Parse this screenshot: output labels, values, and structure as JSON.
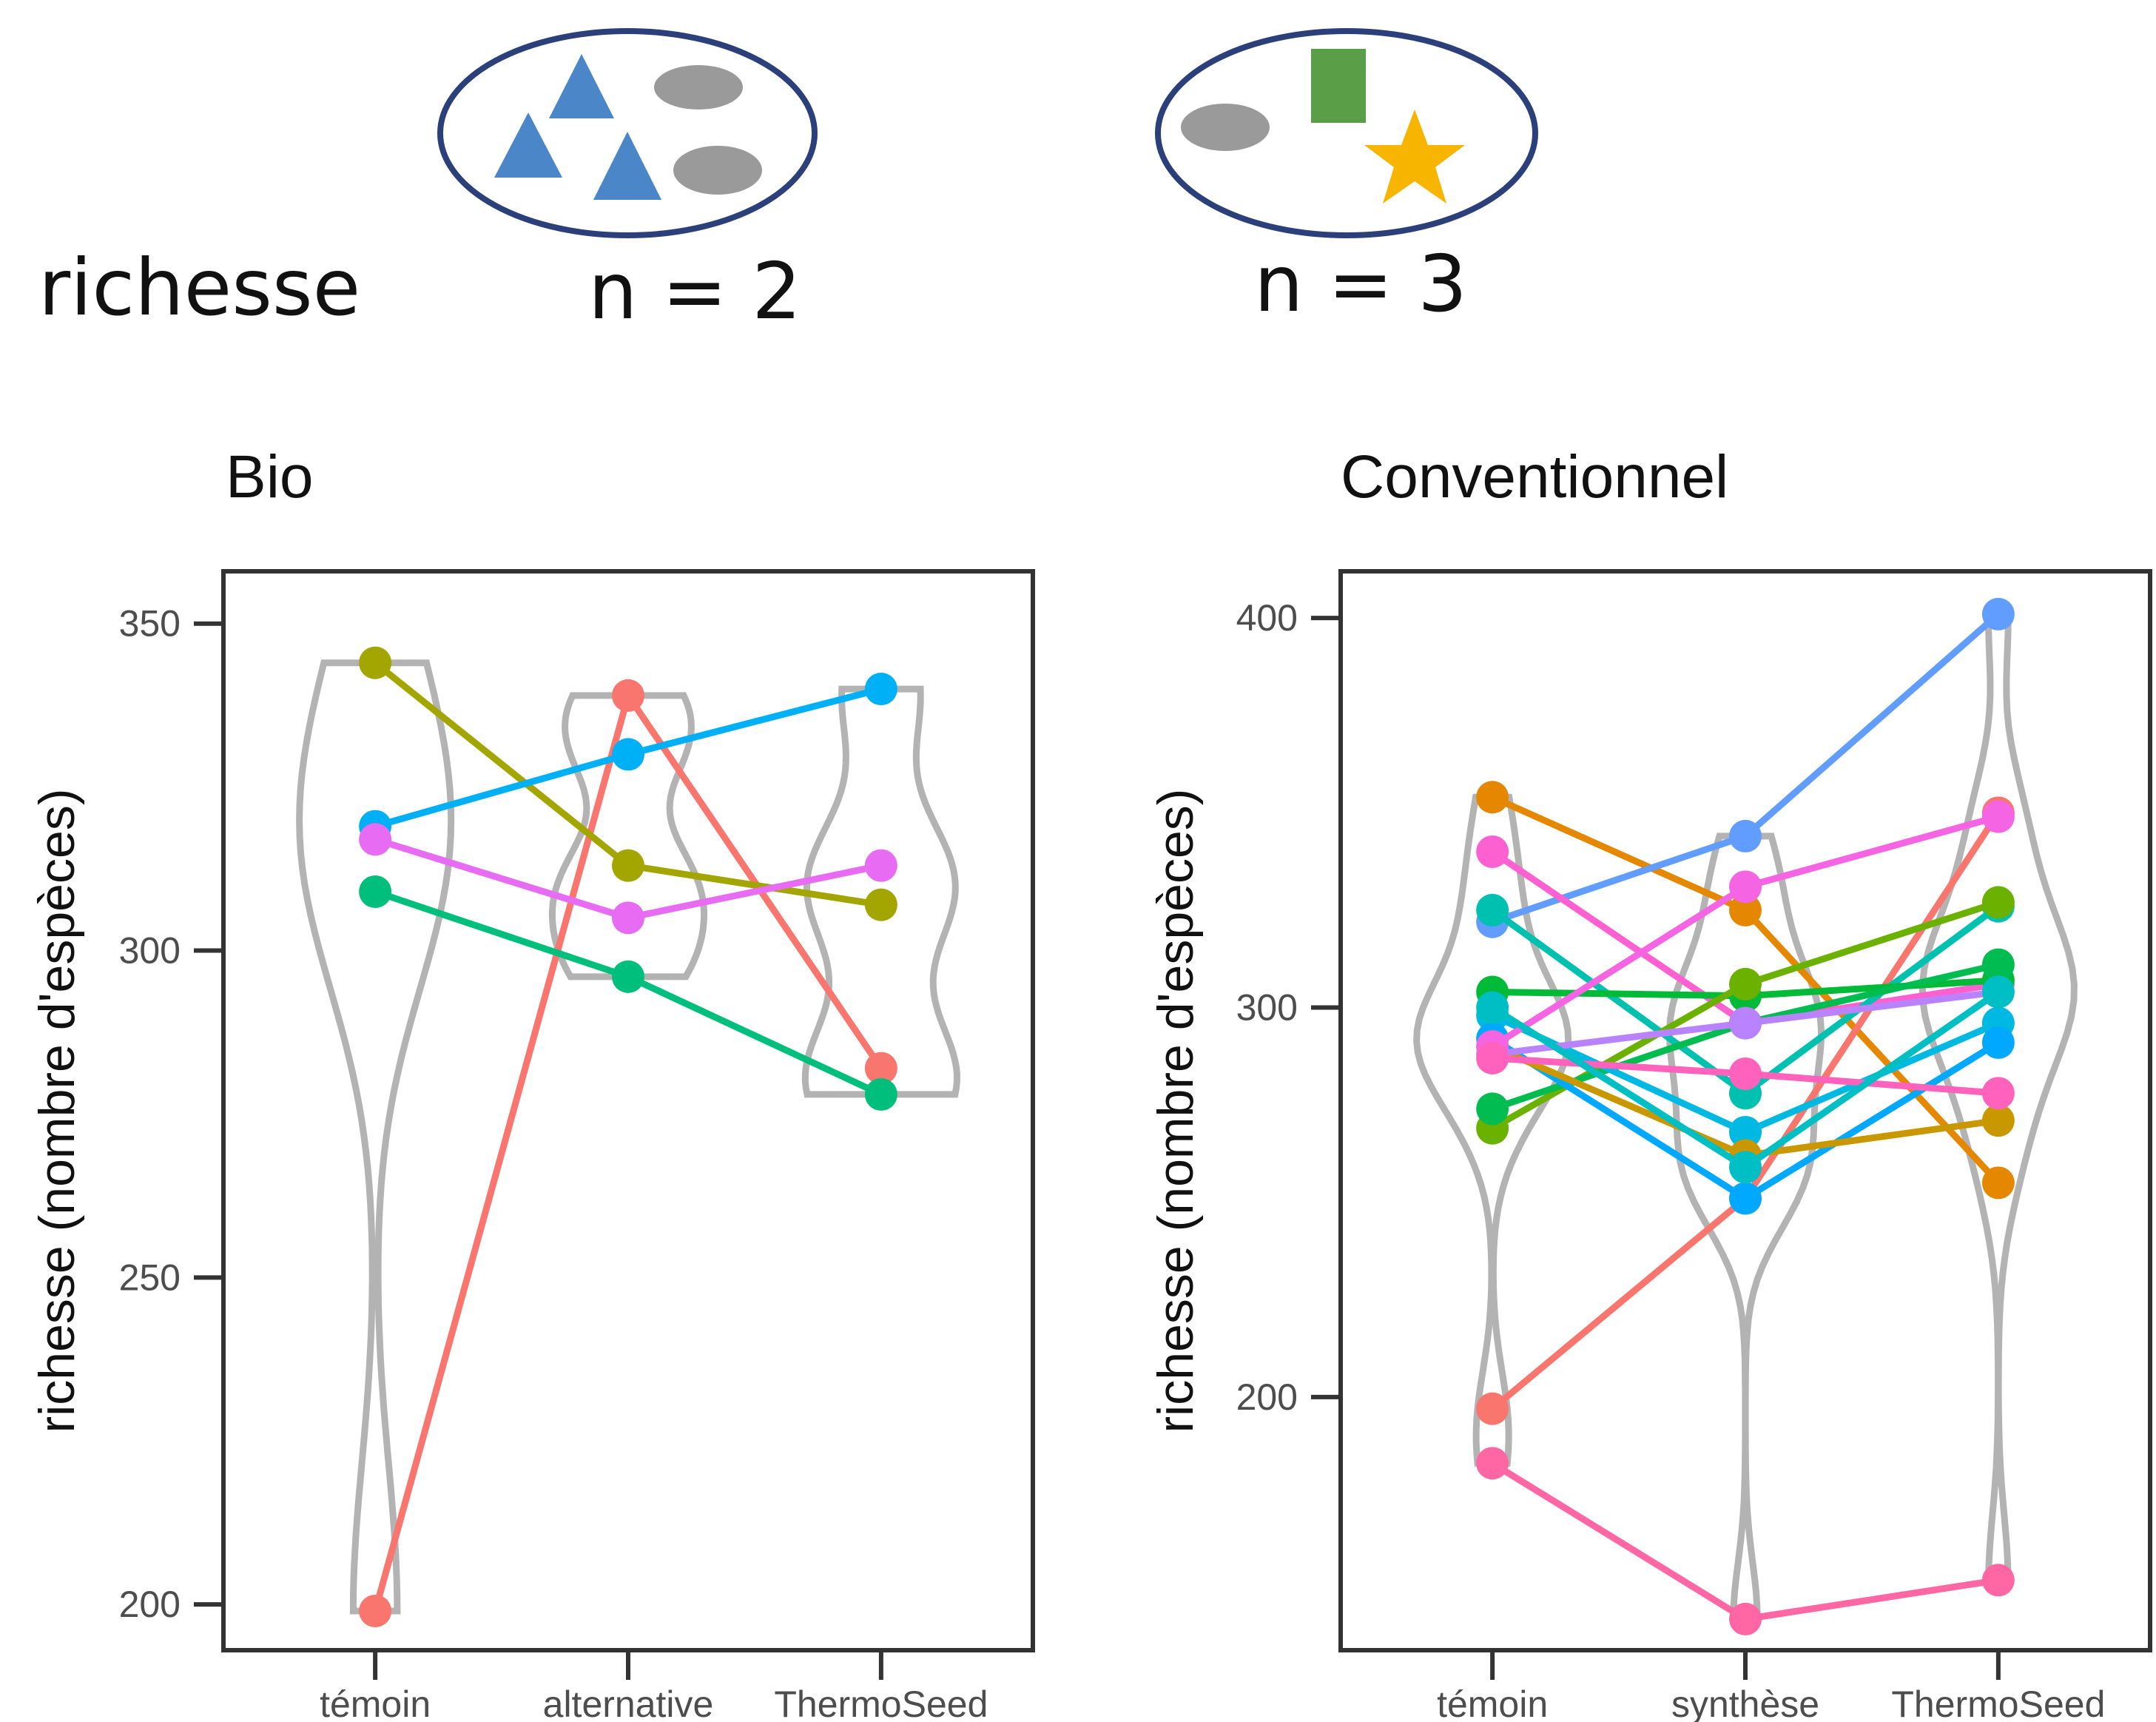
{
  "illustration": {
    "label": "richesse",
    "left_caption": "n = 2",
    "right_caption": "n = 3",
    "colors": {
      "blue_shape": "#4a86c8",
      "gray_shape": "#9a9a9a",
      "green_shape": "#5a9e47",
      "star": "#f7b500",
      "ellipse": "#2b3f7a"
    }
  },
  "chart_data": [
    {
      "type": "line",
      "title": "Bio",
      "ylabel": "richesse (nombre d'espèces)",
      "xlabel": "",
      "categories": [
        "témoin",
        "alternative",
        "ThermoSeed"
      ],
      "ylim": [
        193,
        358
      ],
      "yticks": [
        200,
        250,
        300,
        350
      ],
      "grid": false,
      "violins": true,
      "series": [
        {
          "color": "#f8766d",
          "values": [
            199,
            339,
            282
          ]
        },
        {
          "color": "#a3a500",
          "values": [
            344,
            313,
            307
          ]
        },
        {
          "color": "#00b0f6",
          "values": [
            319,
            330,
            340
          ]
        },
        {
          "color": "#e76bf3",
          "values": [
            317,
            305,
            313
          ]
        },
        {
          "color": "#00bf7d",
          "values": [
            309,
            296,
            278
          ]
        }
      ]
    },
    {
      "type": "line",
      "title": "Conventionnel",
      "ylabel": "richesse (nombre d'espèces)",
      "xlabel": "",
      "categories": [
        "témoin",
        "synthèse",
        "ThermoSeed"
      ],
      "ylim": [
        135,
        412
      ],
      "yticks": [
        200,
        300,
        400
      ],
      "grid": false,
      "violins": true,
      "series": [
        {
          "color": "#e58700",
          "values": [
            354,
            325,
            255
          ]
        },
        {
          "color": "#f8766d",
          "values": [
            197,
            251,
            350
          ]
        },
        {
          "color": "#619cff",
          "values": [
            322,
            344,
            401
          ]
        },
        {
          "color": "#fd61d1",
          "values": [
            340,
            296,
            306
          ]
        },
        {
          "color": "#ff67a4",
          "values": [
            183,
            143,
            153
          ]
        },
        {
          "color": "#00c0af",
          "values": [
            325,
            278,
            326
          ]
        },
        {
          "color": "#00ba38",
          "values": [
            304,
            303,
            307
          ]
        },
        {
          "color": "#6bb100",
          "values": [
            269,
            306,
            327
          ]
        },
        {
          "color": "#00bc51",
          "values": [
            274,
            296,
            311
          ]
        },
        {
          "color": "#00b9e3",
          "values": [
            298,
            268,
            296
          ]
        },
        {
          "color": "#00a9ff",
          "values": [
            292,
            251,
            291
          ]
        },
        {
          "color": "#c99800",
          "values": [
            290,
            262,
            271
          ]
        },
        {
          "color": "#b983ff",
          "values": [
            288,
            296,
            304
          ]
        },
        {
          "color": "#f564e3",
          "values": [
            290,
            331,
            349
          ]
        },
        {
          "color": "#ff62bc",
          "values": [
            287,
            283,
            278
          ]
        },
        {
          "color": "#00bfc4",
          "values": [
            300,
            259,
            304
          ]
        }
      ]
    }
  ]
}
